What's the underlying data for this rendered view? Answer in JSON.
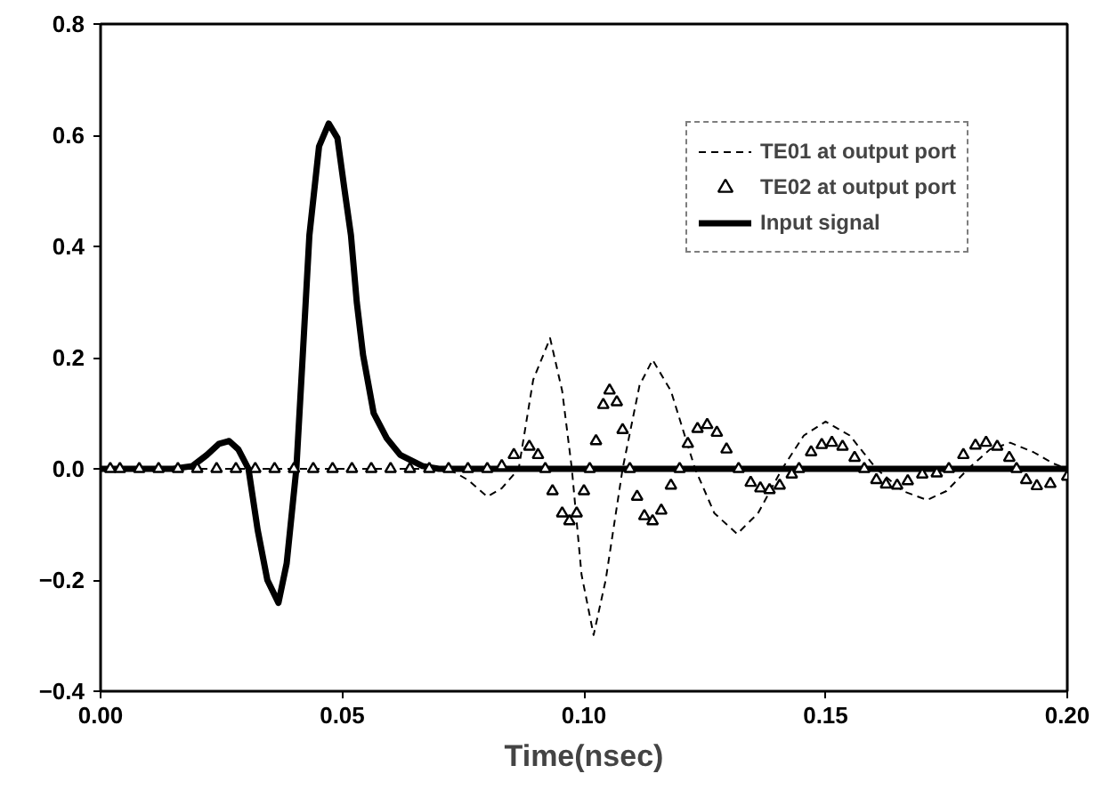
{
  "chart_data": {
    "type": "line",
    "xlabel": "Time(nsec)",
    "xlim": [
      0,
      0.2
    ],
    "xticks": [
      {
        "value": 0,
        "label": "0.00"
      },
      {
        "value": 0.05,
        "label": "0.05"
      },
      {
        "value": 0.1,
        "label": "0.10"
      },
      {
        "value": 0.15,
        "label": "0.15"
      },
      {
        "value": 0.2,
        "label": "0.20"
      }
    ],
    "ylim": [
      -0.4,
      0.8
    ],
    "yticks": [
      -0.4,
      -0.2,
      {
        "value": 0,
        "label": "0.0"
      },
      0.2,
      0.4,
      0.6,
      0.8
    ],
    "grid": false,
    "legend": "top right",
    "series": [
      {
        "name": "TE01 at output port",
        "line_style": "dashed",
        "marker": "none",
        "color": "#000000",
        "x": [
          0,
          0.072,
          0.076,
          0.08,
          0.083,
          0.0865,
          0.0895,
          0.093,
          0.0955,
          0.0975,
          0.0995,
          0.102,
          0.1045,
          0.108,
          0.1115,
          0.1142,
          0.118,
          0.123,
          0.127,
          0.1317,
          0.136,
          0.141,
          0.1455,
          0.15,
          0.155,
          0.1605,
          0.166,
          0.171,
          0.175,
          0.1795,
          0.184,
          0.1882,
          0.193,
          0.197,
          0.2
        ],
        "values": [
          0,
          0,
          -0.02,
          -0.05,
          -0.035,
          0,
          0.16,
          0.235,
          0.14,
          0,
          -0.19,
          -0.299,
          -0.2,
          0,
          0.15,
          0.196,
          0.14,
          0,
          -0.08,
          -0.117,
          -0.08,
          0,
          0.06,
          0.085,
          0.06,
          0,
          -0.04,
          -0.056,
          -0.04,
          0,
          0.035,
          0.047,
          0.03,
          0.01,
          0
        ]
      },
      {
        "name": "TE02 at output port",
        "type": "scatter",
        "marker": "triangle",
        "color": "#000000",
        "x": [
          0.002,
          0.004,
          0.008,
          0.012,
          0.016,
          0.02,
          0.024,
          0.028,
          0.032,
          0.036,
          0.04,
          0.044,
          0.048,
          0.052,
          0.056,
          0.06,
          0.064,
          0.068,
          0.072,
          0.076,
          0.08,
          0.083,
          0.0855,
          0.0887,
          0.0905,
          0.092,
          0.0935,
          0.0955,
          0.097,
          0.0985,
          0.1,
          0.1012,
          0.1025,
          0.104,
          0.1053,
          0.1068,
          0.108,
          0.1095,
          0.111,
          0.1125,
          0.1142,
          0.116,
          0.118,
          0.1198,
          0.1215,
          0.1235,
          0.1255,
          0.1275,
          0.1295,
          0.132,
          0.1345,
          0.1365,
          0.1384,
          0.1405,
          0.143,
          0.1445,
          0.147,
          0.1492,
          0.1513,
          0.1535,
          0.156,
          0.158,
          0.1605,
          0.1625,
          0.1648,
          0.167,
          0.17,
          0.173,
          0.1755,
          0.1785,
          0.181,
          0.1832,
          0.1855,
          0.188,
          0.1895,
          0.1915,
          0.1937,
          0.1965,
          0.2
        ],
        "values": [
          0,
          0,
          0,
          0,
          0,
          0,
          0,
          0,
          0,
          0,
          0,
          0,
          0,
          0,
          0,
          0,
          0,
          0,
          0,
          0,
          0,
          0.005,
          0.025,
          0.04,
          0.025,
          0,
          -0.04,
          -0.08,
          -0.094,
          -0.08,
          -0.04,
          0,
          0.05,
          0.115,
          0.141,
          0.12,
          0.07,
          0,
          -0.05,
          -0.085,
          -0.094,
          -0.075,
          -0.03,
          0,
          0.045,
          0.072,
          0.079,
          0.065,
          0.035,
          0,
          -0.025,
          -0.035,
          -0.038,
          -0.03,
          -0.01,
          0,
          0.03,
          0.043,
          0.047,
          0.04,
          0.02,
          0,
          -0.02,
          -0.028,
          -0.03,
          -0.022,
          -0.01,
          -0.008,
          0,
          0.025,
          0.042,
          0.047,
          0.04,
          0.02,
          0,
          -0.02,
          -0.031,
          -0.027,
          -0.014
        ]
      },
      {
        "name": "Input signal",
        "line_style": "solid",
        "marker": "none",
        "color": "#000000",
        "x": [
          0,
          0.015,
          0.019,
          0.022,
          0.0245,
          0.0266,
          0.0285,
          0.0306,
          0.0325,
          0.0345,
          0.0368,
          0.0385,
          0.0405,
          0.0418,
          0.0432,
          0.0452,
          0.0472,
          0.049,
          0.0505,
          0.0518,
          0.053,
          0.0543,
          0.0565,
          0.0592,
          0.062,
          0.0666,
          0.07,
          0.2
        ],
        "values": [
          0,
          0,
          0.005,
          0.025,
          0.045,
          0.05,
          0.035,
          0,
          -0.11,
          -0.2,
          -0.241,
          -0.17,
          0,
          0.2,
          0.42,
          0.58,
          0.621,
          0.595,
          0.5,
          0.42,
          0.3,
          0.205,
          0.1,
          0.055,
          0.025,
          0.005,
          0,
          0
        ]
      }
    ]
  }
}
